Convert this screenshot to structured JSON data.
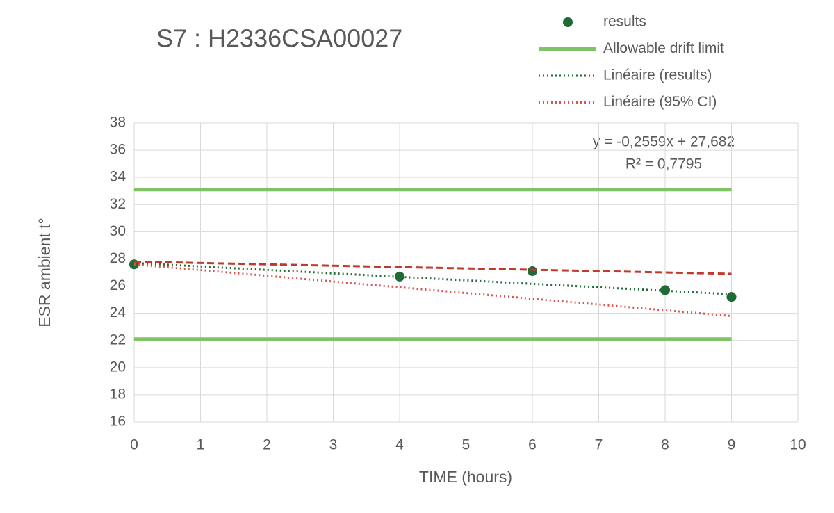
{
  "chart_data": {
    "type": "scatter",
    "title": "S7 : H2336CSA00027",
    "x_label": "TIME (hours)",
    "y_label": "ESR ambient t°",
    "xlim": [
      0,
      10
    ],
    "xticks": [
      0,
      1,
      2,
      3,
      4,
      5,
      6,
      7,
      8,
      9,
      10
    ],
    "ylim": [
      16,
      38
    ],
    "yticks": [
      16,
      18,
      20,
      22,
      24,
      26,
      28,
      30,
      32,
      34,
      36,
      38
    ],
    "grid": true,
    "legend": "top-right",
    "annotations": [
      "y = -0,2559x + 27,682",
      "R² = 0,7795"
    ],
    "series": [
      {
        "name": "results",
        "color": "#1e6b35",
        "style": "marker",
        "x": [
          0,
          4,
          6,
          8,
          9
        ],
        "values": [
          27.6,
          26.7,
          27.1,
          25.7,
          25.2
        ]
      },
      {
        "name": "Allowable drift limit",
        "color": "#7fc463",
        "style": "solid",
        "x": [
          0,
          9,
          null,
          0,
          9
        ],
        "values": [
          33.1,
          33.1,
          null,
          22.1,
          22.1
        ]
      },
      {
        "name": "Linéaire (results)",
        "color": "#1e6b35",
        "style": "dotted",
        "x": [
          0,
          9
        ],
        "values": [
          27.7,
          25.4
        ]
      },
      {
        "name": "Linéaire (95% CI)",
        "color": "#d9534f",
        "style": "dotted",
        "x": [
          0,
          9
        ],
        "values": [
          27.6,
          23.8
        ]
      },
      {
        "color": "#c0392b",
        "style": "dashed",
        "x": [
          0,
          9
        ],
        "values": [
          27.8,
          26.9
        ]
      }
    ]
  }
}
